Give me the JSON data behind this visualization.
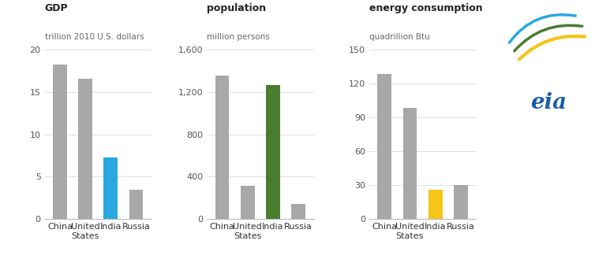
{
  "gdp": {
    "title": "GDP",
    "subtitle": "trillion 2010 U.S. dollars",
    "categories": [
      "China",
      "United\nStates",
      "India",
      "Russia"
    ],
    "values": [
      18.2,
      16.5,
      7.3,
      3.5
    ],
    "colors": [
      "#a8a8a8",
      "#a8a8a8",
      "#29a8e0",
      "#a8a8a8"
    ],
    "ylim": [
      0,
      20
    ],
    "yticks": [
      0,
      5,
      10,
      15,
      20
    ]
  },
  "population": {
    "title": "population",
    "subtitle": "million persons",
    "categories": [
      "China",
      "United\nStates",
      "India",
      "Russia"
    ],
    "values": [
      1355,
      315,
      1260,
      143
    ],
    "colors": [
      "#a8a8a8",
      "#a8a8a8",
      "#4a7c2f",
      "#a8a8a8"
    ],
    "ylim": [
      0,
      1600
    ],
    "yticks": [
      0,
      400,
      800,
      1200,
      1600
    ]
  },
  "energy": {
    "title": "energy consumption",
    "subtitle": "quadrillion Btu",
    "categories": [
      "China",
      "United\nStates",
      "India",
      "Russia"
    ],
    "values": [
      128,
      98,
      26,
      30
    ],
    "colors": [
      "#a8a8a8",
      "#a8a8a8",
      "#f5c518",
      "#a8a8a8"
    ],
    "ylim": [
      0,
      150
    ],
    "yticks": [
      0,
      30,
      60,
      90,
      120,
      150
    ]
  },
  "eia_logo": {
    "text": "eia",
    "text_color": "#1a5fa8",
    "swoosh_colors": [
      "#f5c518",
      "#4a7c2f",
      "#29a8e0"
    ]
  }
}
